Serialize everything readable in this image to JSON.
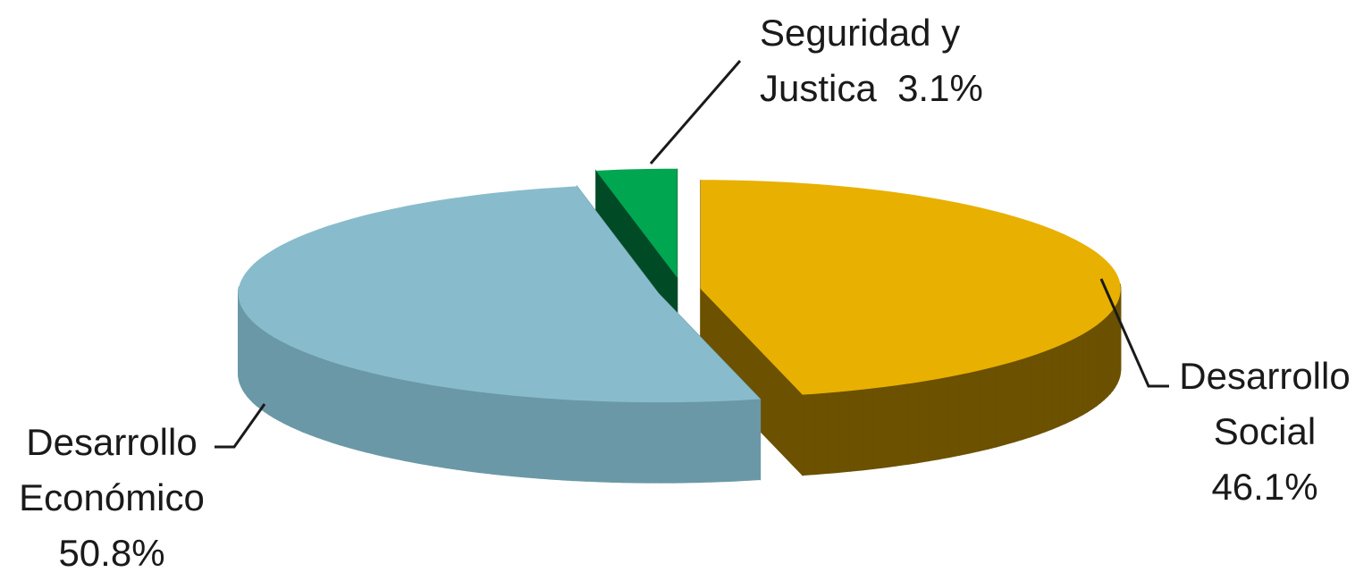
{
  "chart_data": {
    "type": "pie",
    "categories": [
      "Desarrollo Social",
      "Desarrollo Económico",
      "Seguridad y Justica"
    ],
    "values": [
      46.1,
      50.8,
      3.1
    ],
    "value_labels": [
      "46.1%",
      "50.8%",
      "3.1%"
    ],
    "colors": [
      "#e8b000",
      "#88bccc",
      "#00a650"
    ],
    "side_colors": [
      "#6b5100",
      "#6a98a6",
      "#004a26"
    ]
  }
}
